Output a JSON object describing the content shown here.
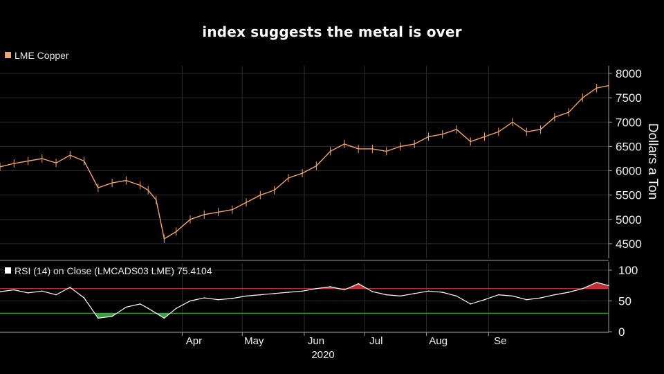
{
  "title": "index suggests the metal is over",
  "chart_data": [
    {
      "type": "line",
      "series": [
        {
          "name": "LME Copper",
          "color": "#f2a66b"
        }
      ],
      "ylabel": "Dollars a Ton",
      "ylim": [
        4200,
        8100
      ],
      "yticks": [
        4500,
        5000,
        5500,
        6000,
        6500,
        7000,
        7500,
        8000
      ],
      "xlim": [
        "2020-01-01",
        "2020-10-31"
      ],
      "xticks": [
        {
          "label": "Apr",
          "date": "2020-04-01"
        },
        {
          "label": "May",
          "date": "2020-05-01"
        },
        {
          "label": "Jun",
          "date": "2020-06-01"
        },
        {
          "label": "Jul",
          "date": "2020-07-01"
        },
        {
          "label": "Aug",
          "date": "2020-08-01"
        },
        {
          "label": "Se",
          "date": "2020-09-01"
        }
      ],
      "x_year_label": "2020",
      "grid": true,
      "legend_position": "top-left",
      "x": [
        "2020-01-01",
        "2020-01-08",
        "2020-01-15",
        "2020-01-22",
        "2020-01-29",
        "2020-02-05",
        "2020-02-12",
        "2020-02-19",
        "2020-02-26",
        "2020-03-04",
        "2020-03-11",
        "2020-03-15",
        "2020-03-19",
        "2020-03-23",
        "2020-03-29",
        "2020-04-05",
        "2020-04-12",
        "2020-04-19",
        "2020-04-26",
        "2020-05-03",
        "2020-05-10",
        "2020-05-17",
        "2020-05-24",
        "2020-05-31",
        "2020-06-07",
        "2020-06-14",
        "2020-06-21",
        "2020-06-28",
        "2020-07-05",
        "2020-07-12",
        "2020-07-19",
        "2020-07-26",
        "2020-08-02",
        "2020-08-09",
        "2020-08-16",
        "2020-08-23",
        "2020-08-30",
        "2020-09-06",
        "2020-09-13",
        "2020-09-20",
        "2020-09-27",
        "2020-10-04",
        "2020-10-11",
        "2020-10-18",
        "2020-10-25",
        "2020-10-31"
      ],
      "values": [
        6080,
        6150,
        6200,
        6250,
        6160,
        6320,
        6200,
        5650,
        5750,
        5800,
        5700,
        5600,
        5400,
        4600,
        4750,
        5000,
        5100,
        5150,
        5200,
        5350,
        5500,
        5600,
        5850,
        5950,
        6100,
        6400,
        6550,
        6450,
        6450,
        6400,
        6500,
        6550,
        6700,
        6750,
        6850,
        6600,
        6700,
        6800,
        7000,
        6800,
        6850,
        7100,
        7200,
        7500,
        7700,
        7750
      ]
    },
    {
      "type": "line",
      "series": [
        {
          "name": "RSI (14)",
          "color": "#ffffff"
        }
      ],
      "legend_text": "RSI (14)   on Close (LMCADS03 LME) 75.4104",
      "ylim": [
        0,
        100
      ],
      "yticks": [
        0,
        50,
        100
      ],
      "overbought": 70,
      "oversold": 30,
      "overbought_color": "#d5333a",
      "oversold_color": "#3fae49",
      "legend_position": "top-left",
      "x": [
        "2020-01-01",
        "2020-01-08",
        "2020-01-15",
        "2020-01-22",
        "2020-01-29",
        "2020-02-05",
        "2020-02-12",
        "2020-02-19",
        "2020-02-26",
        "2020-03-04",
        "2020-03-11",
        "2020-03-15",
        "2020-03-19",
        "2020-03-23",
        "2020-03-29",
        "2020-04-05",
        "2020-04-12",
        "2020-04-19",
        "2020-04-26",
        "2020-05-03",
        "2020-05-10",
        "2020-05-17",
        "2020-05-24",
        "2020-05-31",
        "2020-06-07",
        "2020-06-14",
        "2020-06-21",
        "2020-06-28",
        "2020-07-05",
        "2020-07-12",
        "2020-07-19",
        "2020-07-26",
        "2020-08-02",
        "2020-08-09",
        "2020-08-16",
        "2020-08-23",
        "2020-08-30",
        "2020-09-06",
        "2020-09-13",
        "2020-09-20",
        "2020-09-27",
        "2020-10-04",
        "2020-10-11",
        "2020-10-18",
        "2020-10-25",
        "2020-10-31"
      ],
      "values": [
        65,
        68,
        63,
        66,
        60,
        72,
        55,
        22,
        25,
        40,
        45,
        38,
        30,
        22,
        38,
        50,
        55,
        52,
        54,
        58,
        60,
        62,
        64,
        66,
        70,
        73,
        68,
        78,
        65,
        60,
        58,
        62,
        66,
        64,
        58,
        45,
        52,
        60,
        58,
        52,
        55,
        60,
        64,
        70,
        80,
        75
      ]
    }
  ]
}
